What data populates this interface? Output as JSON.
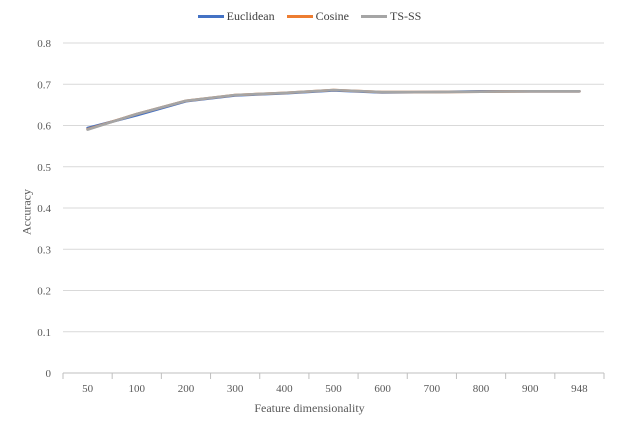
{
  "chart_data": {
    "type": "line",
    "categories": [
      "50",
      "100",
      "200",
      "300",
      "400",
      "500",
      "600",
      "700",
      "800",
      "900",
      "948"
    ],
    "series": [
      {
        "name": "Euclidean",
        "color": "#4472C4",
        "values": [
          0.594,
          0.625,
          0.659,
          0.673,
          0.678,
          0.685,
          0.68,
          0.681,
          0.683,
          0.683,
          0.683
        ]
      },
      {
        "name": "Cosine",
        "color": "#ED7D31",
        "values": [
          0.591,
          0.628,
          0.66,
          0.674,
          0.679,
          0.686,
          0.681,
          0.681,
          0.682,
          0.683,
          0.683
        ]
      },
      {
        "name": "TS-SS",
        "color": "#A5A5A5",
        "values": [
          0.59,
          0.628,
          0.66,
          0.674,
          0.679,
          0.686,
          0.681,
          0.681,
          0.682,
          0.683,
          0.683
        ]
      }
    ],
    "yticks": [
      "0",
      "0.1",
      "0.2",
      "0.3",
      "0.4",
      "0.5",
      "0.6",
      "0.7",
      "0.8"
    ],
    "ylim": [
      0,
      0.8
    ],
    "xlabel": "Feature dimensionality",
    "ylabel": "Accuracy",
    "legend": "top-center",
    "grid": true
  }
}
